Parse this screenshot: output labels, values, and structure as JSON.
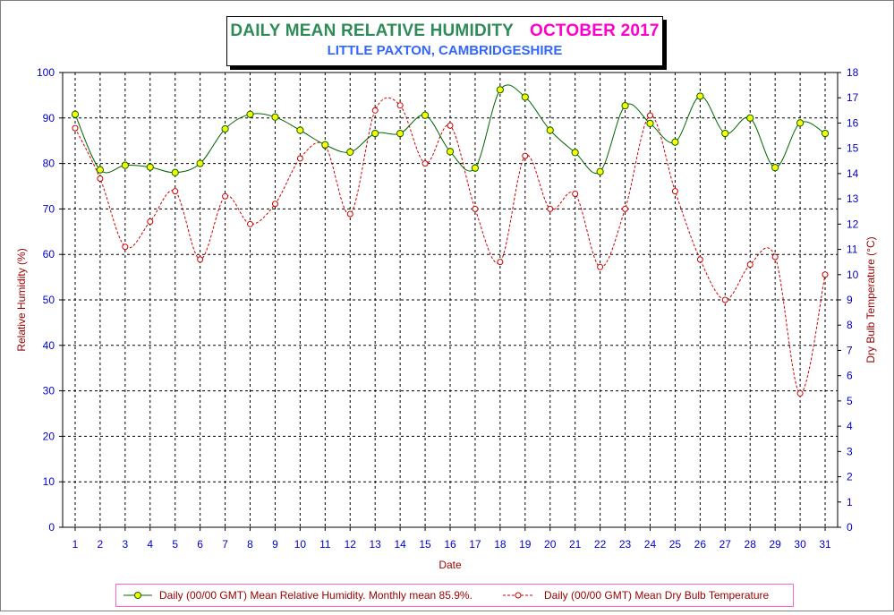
{
  "chart_data": {
    "type": "line",
    "title": "DAILY MEAN RELATIVE HUMIDITY",
    "title_period": "OCTOBER 2017",
    "subtitle": "LITTLE PAXTON, CAMBRIDGESHIRE",
    "xlabel": "Date",
    "ylabel_left": "Relative Humidity (%)",
    "ylabel_right": "Dry Bulb Temperature (°C)",
    "x": [
      1,
      2,
      3,
      4,
      5,
      6,
      7,
      8,
      9,
      10,
      11,
      12,
      13,
      14,
      15,
      16,
      17,
      18,
      19,
      20,
      21,
      22,
      23,
      24,
      25,
      26,
      27,
      28,
      29,
      30,
      31
    ],
    "ylim_left": [
      0,
      100
    ],
    "ylim_right": [
      0,
      18
    ],
    "yticks_left": [
      0,
      10,
      20,
      30,
      40,
      50,
      60,
      70,
      80,
      90,
      100
    ],
    "yticks_right": [
      0,
      1,
      2,
      3,
      4,
      5,
      6,
      7,
      8,
      9,
      10,
      11,
      12,
      13,
      14,
      15,
      16,
      17,
      18
    ],
    "grid": true,
    "legend_position": "bottom",
    "series": [
      {
        "name": "Daily (00/00 GMT) Mean Relative Humidity. Monthly mean 85.9%.",
        "axis": "left",
        "line_color": "#006400",
        "marker_color": "#ffff00",
        "values": [
          90.8,
          78.6,
          79.6,
          79.2,
          78.0,
          80.0,
          87.6,
          90.8,
          90.2,
          87.3,
          84.1,
          82.5,
          86.6,
          86.6,
          90.6,
          82.6,
          79.0,
          96.2,
          94.6,
          87.3,
          82.4,
          78.2,
          92.7,
          88.8,
          84.7,
          94.8,
          86.6,
          90.0,
          79.1,
          88.9,
          86.6
        ]
      },
      {
        "name": "Daily (00/00 GMT) Mean Dry Bulb Temperature",
        "axis": "right",
        "line_color": "#cc0000",
        "marker_color": "#ffffff",
        "values": [
          15.8,
          13.8,
          11.1,
          12.1,
          13.3,
          10.6,
          13.1,
          12.0,
          12.8,
          14.6,
          15.1,
          12.4,
          16.5,
          16.7,
          14.4,
          15.9,
          12.6,
          10.5,
          14.7,
          12.6,
          13.2,
          10.3,
          12.6,
          16.3,
          13.3,
          10.6,
          9.0,
          10.4,
          10.7,
          5.3,
          10.0
        ]
      }
    ]
  },
  "colors": {
    "axis_tick_labels": "#0000cc",
    "axis_titles": "#990000",
    "grid": "#000000"
  }
}
